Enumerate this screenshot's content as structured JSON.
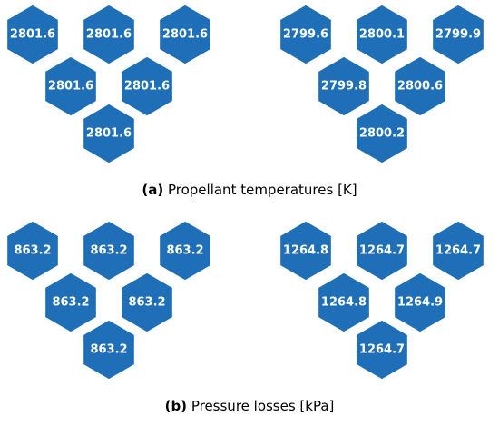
{
  "colors": {
    "hex_fill": "#1f6fb8",
    "hex_text": "#ffffff",
    "caption_text": "#000000"
  },
  "panels": [
    {
      "tag": "(a)",
      "caption": "Propellant temperatures [K]",
      "groups": [
        {
          "values": [
            "2801.6",
            "2801.6",
            "2801.6",
            "2801.6",
            "2801.6",
            "2801.6"
          ]
        },
        {
          "values": [
            "2799.6",
            "2800.1",
            "2799.9",
            "2799.8",
            "2800.6",
            "2800.2"
          ]
        }
      ]
    },
    {
      "tag": "(b)",
      "caption": "Pressure losses [kPa]",
      "groups": [
        {
          "values": [
            "863.2",
            "863.2",
            "863.2",
            "863.2",
            "863.2",
            "863.2"
          ]
        },
        {
          "values": [
            "1264.8",
            "1264.7",
            "1264.7",
            "1264.8",
            "1264.9",
            "1264.7"
          ]
        }
      ]
    }
  ]
}
